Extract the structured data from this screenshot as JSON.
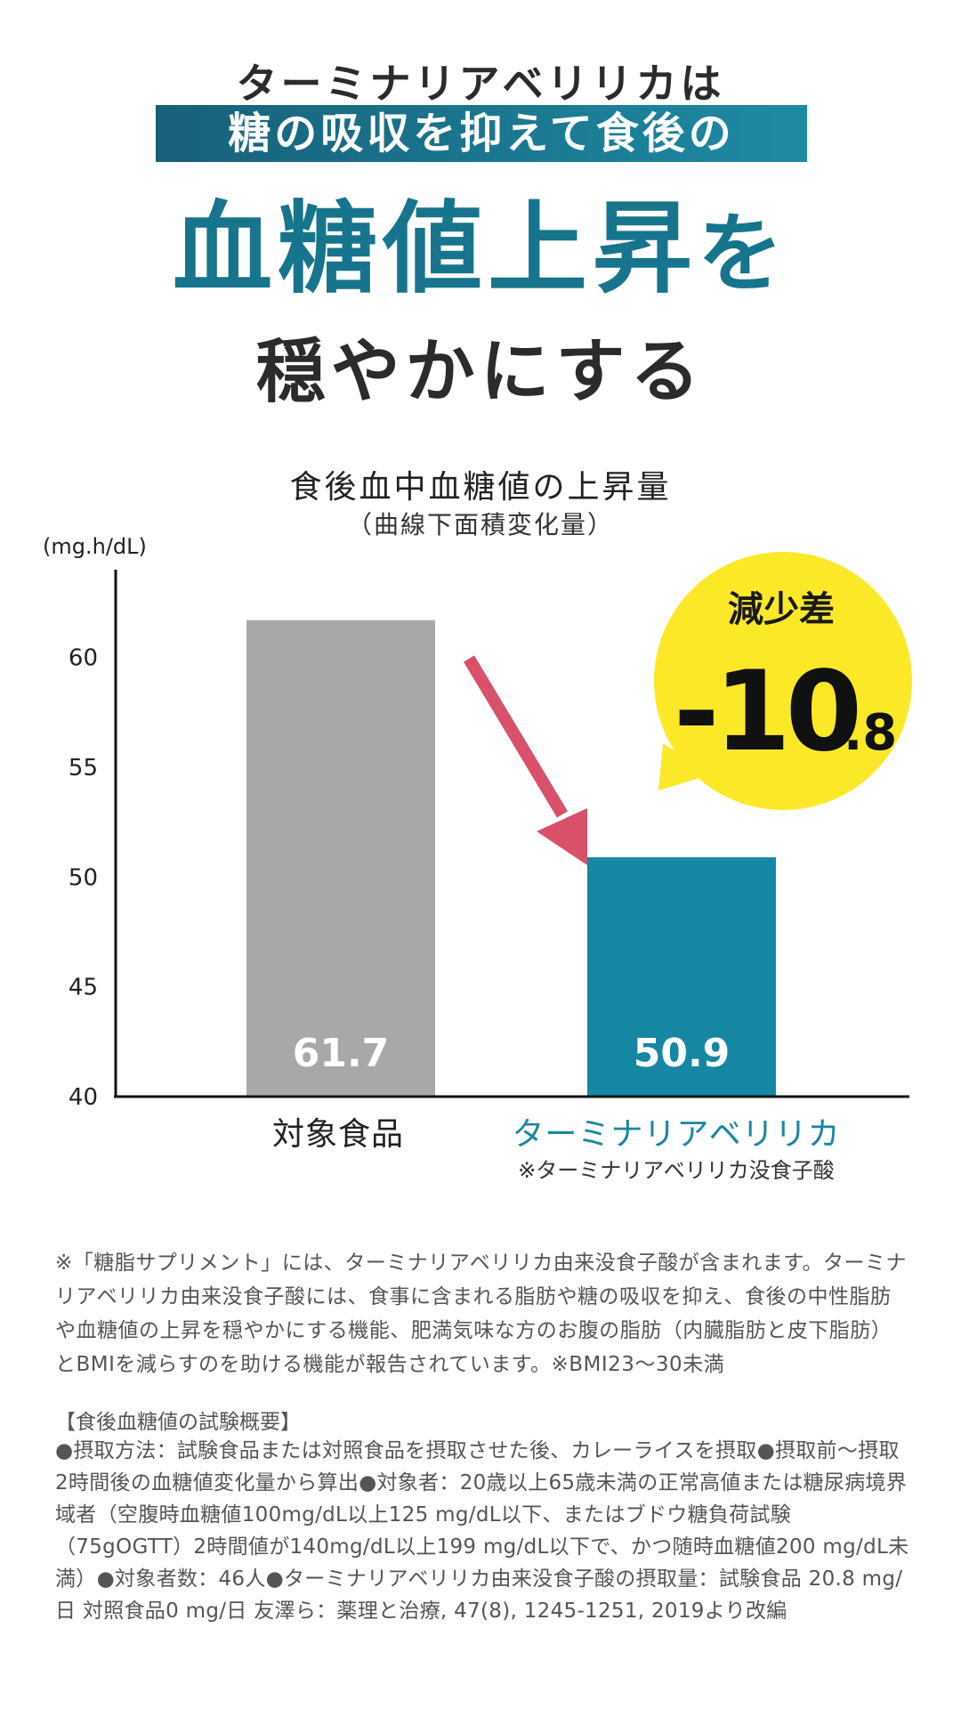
{
  "hero": {
    "line1": "ターミナリアベリリカは",
    "band": "糖の吸収を抑えて食後の",
    "main": "血糖値上昇",
    "main_tail": "を",
    "bottom": "穏やかにする"
  },
  "chart_data": {
    "type": "bar",
    "title": "食後血中血糖値の上昇量",
    "subtitle": "（曲線下面積変化量）",
    "ylabel": "(mg.h/dL)",
    "ylim": [
      40,
      64
    ],
    "yticks": [
      40,
      45,
      50,
      55,
      60
    ],
    "categories": [
      "対象食品",
      "ターミナリアベリリカ"
    ],
    "values": [
      61.7,
      50.9
    ],
    "value_labels": [
      "61.7",
      "50.9"
    ],
    "category_note": "※ターミナリアベリリカ没食子酸",
    "callout": {
      "label": "減少差",
      "value_main": "-10",
      "value_decimal": ".8"
    },
    "colors": {
      "control": "#a8a8a8",
      "product": "#1687a3",
      "arrow": "#d9506a",
      "callout": "#fbe928"
    }
  },
  "notes": {
    "disclaimer": "※「糖脂サプリメント」には、ターミナリアベリリカ由来没食子酸が含まれます。ターミナリアベリリカ由来没食子酸には、食事に含まれる脂肪や糖の吸収を抑え、食後の中性脂肪や血糖値の上昇を穏やかにする機能、肥満気味な方のお腹の脂肪（内臓脂肪と皮下脂肪）とBMIを減らすのを助ける機能が報告されています。※BMI23〜30未満",
    "summary_head": "【食後血糖値の試験概要】",
    "summary_body": "●摂取方法：試験食品または対照食品を摂取させた後、カレーライスを摂取●摂取前〜摂取2時間後の血糖値変化量から算出●対象者：20歳以上65歳未満の正常高値または糖尿病境界域者（空腹時血糖値100mg/dL以上125 mg/dL以下、またはブドウ糖負荷試験（75gOGTT）2時間値が140mg/dL以上199 mg/dL以下で、かつ随時血糖値200 mg/dL未満）●対象者数：46人●ターミナリアベリリカ由来没食子酸の摂取量：試験食品 20.8 mg/日 対照食品0 mg/日 友澤ら：薬理と治療, 47(8), 1245-1251, 2019より改編"
  }
}
